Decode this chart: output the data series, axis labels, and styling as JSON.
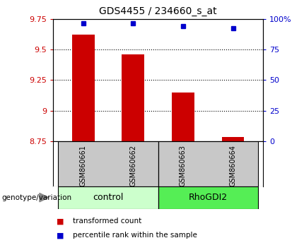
{
  "title": "GDS4455 / 234660_s_at",
  "samples": [
    "GSM860661",
    "GSM860662",
    "GSM860663",
    "GSM860664"
  ],
  "bar_values": [
    9.62,
    9.46,
    9.15,
    8.785
  ],
  "dot_values": [
    9.715,
    9.715,
    9.69,
    9.67
  ],
  "ylim_left": [
    8.75,
    9.75
  ],
  "ylim_right": [
    0,
    100
  ],
  "yticks_left": [
    8.75,
    9.0,
    9.25,
    9.5,
    9.75
  ],
  "yticks_right": [
    0,
    25,
    50,
    75,
    100
  ],
  "ytick_labels_left": [
    "8.75",
    "9",
    "9.25",
    "9.5",
    "9.75"
  ],
  "ytick_labels_right": [
    "0",
    "25",
    "50",
    "75",
    "100%"
  ],
  "bar_color": "#cc0000",
  "dot_color": "#0000cc",
  "bar_width": 0.45,
  "groups": [
    {
      "label": "control",
      "samples": [
        0,
        1
      ],
      "color": "#ccffcc"
    },
    {
      "label": "RhoGDI2",
      "samples": [
        2,
        3
      ],
      "color": "#55ee55"
    }
  ],
  "legend_items": [
    {
      "label": "transformed count",
      "color": "#cc0000"
    },
    {
      "label": "percentile rank within the sample",
      "color": "#0000cc"
    }
  ],
  "genotype_label": "genotype/variation",
  "background_color": "#ffffff",
  "label_area_color": "#c8c8c8",
  "separator_positions": [
    1.5
  ]
}
